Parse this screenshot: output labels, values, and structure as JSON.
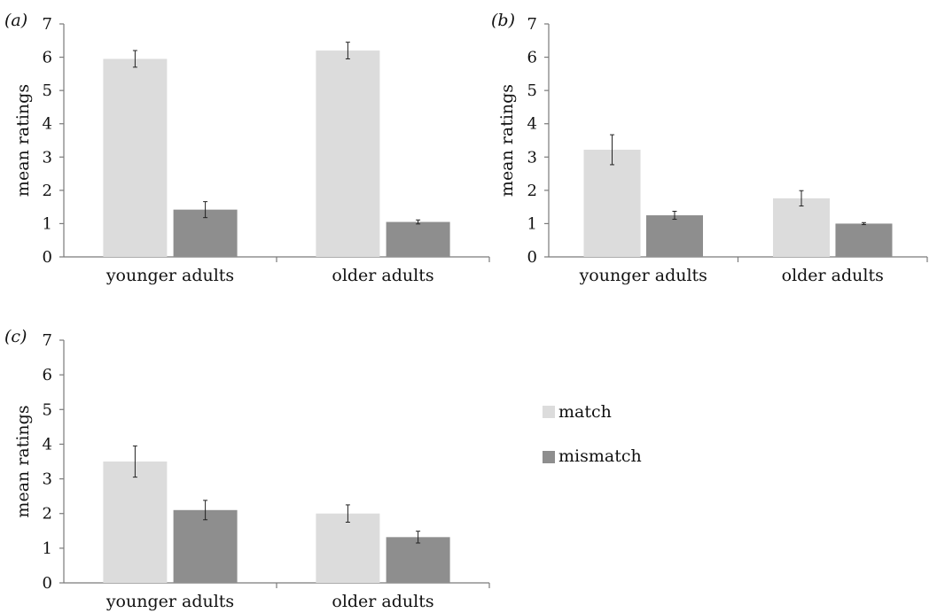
{
  "colors": {
    "match": "#dcdcdc",
    "mismatch": "#8e8e8e",
    "axis": "#7a7a7a",
    "text": "#111111",
    "errorbar": "#222222"
  },
  "legend": {
    "placement": "right",
    "items": [
      {
        "series": "match",
        "label": "match"
      },
      {
        "series": "mismatch",
        "label": "mismatch"
      }
    ]
  },
  "chart_data": [
    {
      "type": "bar",
      "panel": "(a)",
      "ylabel": "mean ratings",
      "ylim": [
        0,
        7
      ],
      "yticks": [
        "0",
        "1",
        "2",
        "3",
        "4",
        "5",
        "6",
        "7"
      ],
      "categories": [
        "younger adults",
        "older adults"
      ],
      "series": [
        {
          "name": "match",
          "values": [
            5.95,
            6.2
          ],
          "errors": [
            0.25,
            0.25
          ]
        },
        {
          "name": "mismatch",
          "values": [
            1.42,
            1.05
          ],
          "errors": [
            0.24,
            0.06
          ]
        }
      ]
    },
    {
      "type": "bar",
      "panel": "(b)",
      "ylabel": "mean ratings",
      "ylim": [
        0,
        7
      ],
      "yticks": [
        "0",
        "1",
        "2",
        "3",
        "4",
        "5",
        "6",
        "7"
      ],
      "categories": [
        "younger adults",
        "older adults"
      ],
      "series": [
        {
          "name": "match",
          "values": [
            3.22,
            1.76
          ],
          "errors": [
            0.45,
            0.23
          ]
        },
        {
          "name": "mismatch",
          "values": [
            1.25,
            1.0
          ],
          "errors": [
            0.12,
            0.03
          ]
        }
      ]
    },
    {
      "type": "bar",
      "panel": "(c)",
      "ylabel": "mean ratings",
      "ylim": [
        0,
        7
      ],
      "yticks": [
        "0",
        "1",
        "2",
        "3",
        "4",
        "5",
        "6",
        "7"
      ],
      "categories": [
        "younger adults",
        "older adults"
      ],
      "series": [
        {
          "name": "match",
          "values": [
            3.5,
            2.0
          ],
          "errors": [
            0.45,
            0.25
          ]
        },
        {
          "name": "mismatch",
          "values": [
            2.1,
            1.32
          ],
          "errors": [
            0.28,
            0.17
          ]
        }
      ]
    }
  ]
}
